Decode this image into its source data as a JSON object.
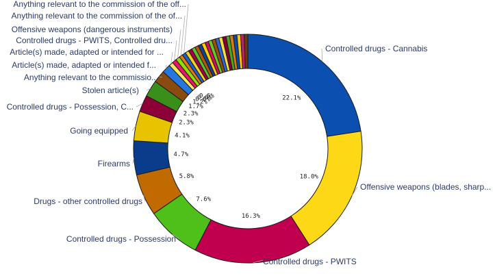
{
  "chart_data": {
    "type": "donut",
    "title": "",
    "slices": [
      {
        "label": "Controlled drugs - Cannabis",
        "value": 22.1,
        "value_label": "22.1%",
        "color": "#0b4fb0"
      },
      {
        "label": "Offensive weapons (blades, sharp...",
        "value": 18.0,
        "value_label": "18.0%",
        "color": "#fcd817"
      },
      {
        "label": "Controlled drugs - PWITS",
        "value": 16.3,
        "value_label": "16.3%",
        "color": "#c0004f"
      },
      {
        "label": "Controlled drugs - Possession",
        "value": 7.6,
        "value_label": "7.6%",
        "color": "#4fbf1a"
      },
      {
        "label": "Drugs - other controlled drugs",
        "value": 5.8,
        "value_label": "5.8%",
        "color": "#c06a00"
      },
      {
        "label": "Firearms",
        "value": 4.7,
        "value_label": "4.7%",
        "color": "#0a3c8c"
      },
      {
        "label": "Going equipped",
        "value": 4.1,
        "value_label": "4.1%",
        "color": "#e8c400"
      },
      {
        "label": "Controlled drugs - Possession, C...",
        "value": 2.3,
        "value_label": "2.3%",
        "color": "#8e0038"
      },
      {
        "label": "Stolen article(s)",
        "value": 2.3,
        "value_label": "2.3%",
        "color": "#3a8f1a"
      },
      {
        "label": "Anything relevant to the commissio...",
        "value": 1.7,
        "value_label": "1.7%",
        "color": "#8a4a10"
      },
      {
        "label": "Article(s) made, adapted or intended f...",
        "value": 1.2,
        "value_label": "1.2%",
        "color": "#2678e0"
      },
      {
        "label": "Article(s) made, adapted or intended for ...",
        "value": 0.6,
        "value_label": "0.6%",
        "color": "#ffe55a"
      },
      {
        "label": "Controlled drugs - PWITS, Controlled dru...",
        "value": 0.6,
        "value_label": "0.6%",
        "color": "#e8156a"
      },
      {
        "label": "Offensive weapons (dangerous instruments)",
        "value": 0.6,
        "value_label": "0.6%",
        "color": "#8ee000"
      },
      {
        "label": "Anything relevant to the commission of the of...",
        "value": 0.5,
        "value_label": "",
        "color": "#e07a10"
      },
      {
        "label": "Anything relevant to the commission of the off...",
        "value": 0.5,
        "value_label": "",
        "color": "#1e5fd0"
      },
      {
        "label": "",
        "value": 0.5,
        "value_label": "",
        "color": "#f2d21a"
      },
      {
        "label": "",
        "value": 0.5,
        "value_label": "",
        "color": "#a8003f"
      },
      {
        "label": "",
        "value": 0.5,
        "value_label": "",
        "color": "#58c42a"
      },
      {
        "label": "",
        "value": 0.5,
        "value_label": "",
        "color": "#b05a08"
      },
      {
        "label": "",
        "value": 0.5,
        "value_label": "",
        "color": "#123f92"
      },
      {
        "label": "",
        "value": 0.5,
        "value_label": "",
        "color": "#ffd000"
      },
      {
        "label": "",
        "value": 0.5,
        "value_label": "",
        "color": "#d0105a"
      },
      {
        "label": "",
        "value": 0.5,
        "value_label": "",
        "color": "#6cc81e"
      },
      {
        "label": "",
        "value": 0.5,
        "value_label": "",
        "color": "#9a5010"
      },
      {
        "label": "",
        "value": 0.5,
        "value_label": "",
        "color": "#2a6ad8"
      },
      {
        "label": "",
        "value": 0.5,
        "value_label": "",
        "color": "#f5e040"
      },
      {
        "label": "",
        "value": 0.5,
        "value_label": "",
        "color": "#8a0030"
      },
      {
        "label": "",
        "value": 0.5,
        "value_label": "",
        "color": "#4aa81a"
      },
      {
        "label": "",
        "value": 0.5,
        "value_label": "",
        "color": "#d47a12"
      },
      {
        "label": "",
        "value": 0.5,
        "value_label": "",
        "color": "#0e4aa8"
      },
      {
        "label": "",
        "value": 0.5,
        "value_label": "",
        "color": "#ffc400"
      },
      {
        "label": "",
        "value": 0.5,
        "value_label": "",
        "color": "#c02068"
      },
      {
        "label": "",
        "value": 0.5,
        "value_label": "",
        "color": "#6a3a10"
      }
    ]
  }
}
